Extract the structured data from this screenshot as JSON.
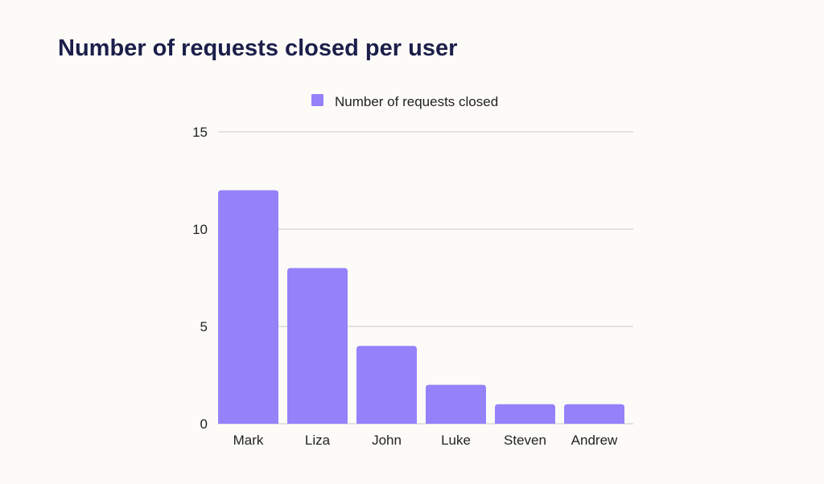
{
  "chart_data": {
    "type": "bar",
    "title": "Number of requests closed per user",
    "categories": [
      "Mark",
      "Liza",
      "John",
      "Luke",
      "Steven",
      "Andrew"
    ],
    "series": [
      {
        "name": "Number of requests closed",
        "values": [
          12,
          8,
          4,
          2,
          1,
          1
        ]
      }
    ],
    "xlabel": "",
    "ylabel": "",
    "ylim": [
      0,
      15
    ],
    "yticks": [
      0,
      5,
      10,
      15
    ],
    "grid": true,
    "legend_position": "top-center",
    "colors": {
      "bar": "#9582fb",
      "title": "#1c1f4a",
      "grid": "#c9c9c9",
      "background": "#fcfbf8"
    }
  }
}
